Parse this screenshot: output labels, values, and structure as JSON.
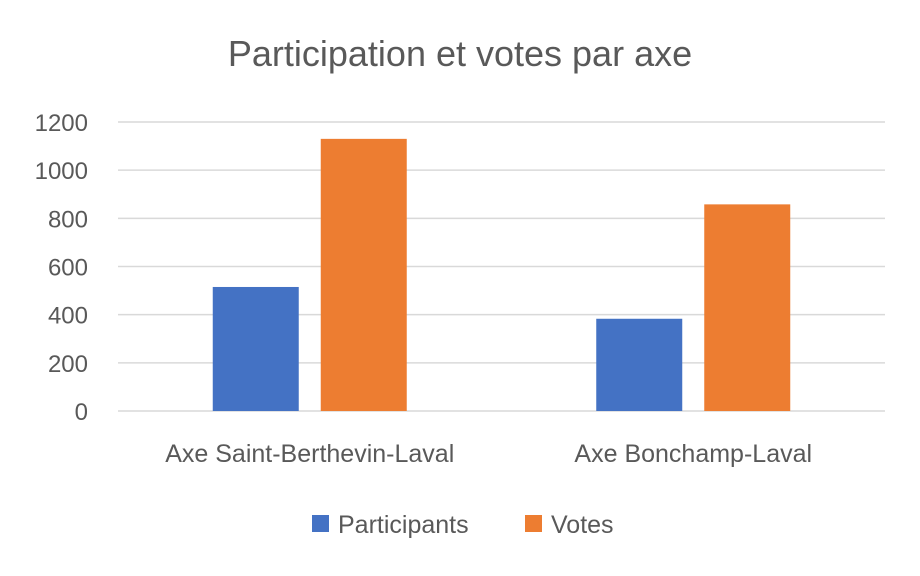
{
  "chart_data": {
    "type": "bar",
    "title": "Participation et votes par axe",
    "categories": [
      "Axe Saint-Berthevin-Laval",
      "Axe Bonchamp-Laval"
    ],
    "series": [
      {
        "name": "Participants",
        "values": [
          515,
          383
        ],
        "color": "#4472C4"
      },
      {
        "name": "Votes",
        "values": [
          1130,
          858
        ],
        "color": "#ED7D31"
      }
    ],
    "xlabel": "",
    "ylabel": "",
    "ylim": [
      0,
      1200
    ],
    "yticks": [
      "0",
      "200",
      "400",
      "600",
      "800",
      "1000",
      "1200"
    ],
    "grid": true,
    "legend": "bottom"
  }
}
